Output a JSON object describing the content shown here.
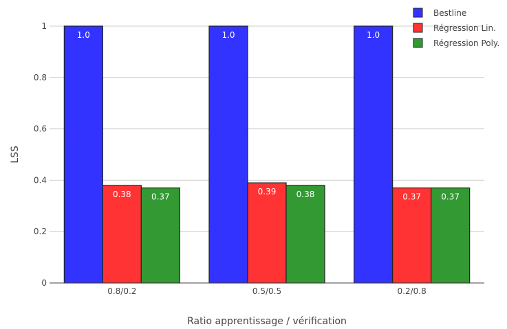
{
  "chart_data": {
    "type": "bar",
    "title": "",
    "xlabel": "Ratio apprentissage / vérification",
    "ylabel": "LSS",
    "categories": [
      "0.8/0.2",
      "0.5/0.5",
      "0.2/0.8"
    ],
    "series": [
      {
        "name": "Bestline",
        "color": "#3333ff",
        "values": [
          1.0,
          1.0,
          1.0
        ],
        "labels": [
          "1.0",
          "1.0",
          "1.0"
        ]
      },
      {
        "name": "Régression Lin.",
        "color": "#ff3333",
        "values": [
          0.38,
          0.39,
          0.37
        ],
        "labels": [
          "0.38",
          "0.39",
          "0.37"
        ]
      },
      {
        "name": "Régression Poly.",
        "color": "#339933",
        "values": [
          0.37,
          0.38,
          0.37
        ],
        "labels": [
          "0.37",
          "0.38",
          "0.37"
        ]
      }
    ],
    "ylim": [
      0,
      1
    ],
    "yticks": [
      0,
      0.2,
      0.4,
      0.6,
      0.8,
      1
    ],
    "ytick_labels": [
      "0",
      "0.2",
      "0.4",
      "0.6",
      "0.8",
      "1"
    ],
    "grid": true,
    "legend_position": "top-right"
  }
}
